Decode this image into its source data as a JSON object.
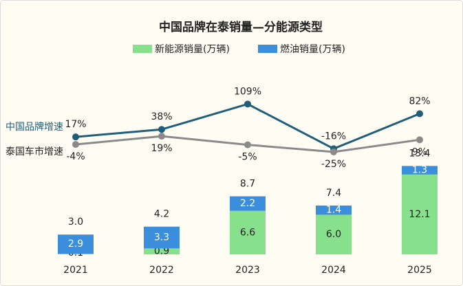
{
  "chart_data": {
    "type": "bar",
    "title": "中国品牌在泰销量—分能源类型",
    "categories": [
      "2021",
      "2022",
      "2023",
      "2024",
      "2025"
    ],
    "series": [
      {
        "name": "新能源销量(万辆)",
        "color": "#87e08c",
        "values": [
          0.1,
          0.9,
          6.6,
          6,
          12.1
        ],
        "value_labels": [
          "0.1",
          "0.9",
          "6.6",
          "6.0",
          "12.1"
        ]
      },
      {
        "name": "燃油销量(万辆)",
        "color": "#3a8edb",
        "values": [
          2.9,
          3.3,
          2.2,
          1.4,
          1.3
        ],
        "value_labels": [
          "2.9",
          "3.3",
          "2.2",
          "1.4",
          "1.3"
        ]
      }
    ],
    "totals": {
      "values": [
        3,
        4.2,
        8.7,
        7.4,
        13.4
      ],
      "value_labels": [
        "3.0",
        "4.2",
        "8.7",
        "7.4",
        "13.4"
      ]
    },
    "lines": [
      {
        "name": "中国品牌增速",
        "color": "#1f5f7a",
        "values": [
          17,
          38,
          109,
          -16,
          82
        ],
        "value_labels": [
          "17%",
          "38%",
          "109%",
          "-16%",
          "82%"
        ]
      },
      {
        "name": "泰国车市增速",
        "color": "#8a8a8a",
        "values": [
          -4,
          19,
          -5,
          -25,
          9
        ],
        "value_labels": [
          "-4%",
          "19%",
          "-5%",
          "-25%",
          "9%"
        ]
      }
    ]
  }
}
